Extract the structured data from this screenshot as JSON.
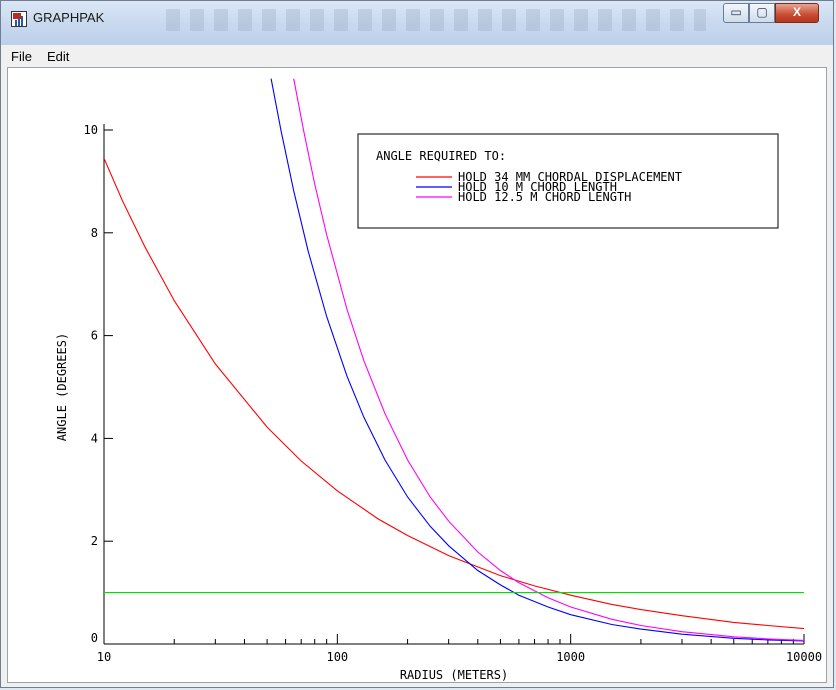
{
  "window": {
    "title": "GRAPHPAK",
    "controls": {
      "minimize": "▭",
      "maximize": "▢",
      "close": "X"
    }
  },
  "menu": [
    "File",
    "Edit"
  ],
  "chart_data": {
    "type": "line",
    "xlabel": "RADIUS (METERS)",
    "ylabel": "ANGLE (DEGREES)",
    "x_scale": "log",
    "xlim": [
      10,
      10000
    ],
    "ylim": [
      0,
      10
    ],
    "x_ticks": [
      "10",
      "100",
      "1000",
      "10000"
    ],
    "y_ticks": [
      "0",
      "2",
      "4",
      "6",
      "8",
      "10"
    ],
    "legend": {
      "title": "ANGLE REQUIRED TO:",
      "placement": "top-right"
    },
    "series": [
      {
        "name": "HOLD 34 MM CHORDAL DISPLACEMENT",
        "color": "#ff0000",
        "points": [
          [
            10,
            9.45
          ],
          [
            12,
            8.62
          ],
          [
            15,
            7.72
          ],
          [
            20,
            6.68
          ],
          [
            30,
            5.45
          ],
          [
            50,
            4.22
          ],
          [
            70,
            3.56
          ],
          [
            100,
            2.98
          ],
          [
            150,
            2.43
          ],
          [
            200,
            2.11
          ],
          [
            300,
            1.72
          ],
          [
            500,
            1.33
          ],
          [
            700,
            1.13
          ],
          [
            1000,
            0.95
          ],
          [
            1500,
            0.77
          ],
          [
            2000,
            0.67
          ],
          [
            3000,
            0.55
          ],
          [
            5000,
            0.42
          ],
          [
            7000,
            0.36
          ],
          [
            10000,
            0.3
          ]
        ]
      },
      {
        "name": "HOLD 10 M CHORD LENGTH",
        "color": "#0000ff",
        "points": [
          [
            52,
            11.0
          ],
          [
            57.3,
            10.0
          ],
          [
            65,
            8.82
          ],
          [
            75,
            7.64
          ],
          [
            90,
            6.37
          ],
          [
            110,
            5.21
          ],
          [
            130,
            4.41
          ],
          [
            160,
            3.58
          ],
          [
            200,
            2.86
          ],
          [
            250,
            2.29
          ],
          [
            300,
            1.91
          ],
          [
            400,
            1.43
          ],
          [
            500,
            1.15
          ],
          [
            600,
            0.95
          ],
          [
            800,
            0.72
          ],
          [
            1000,
            0.57
          ],
          [
            1500,
            0.38
          ],
          [
            2000,
            0.29
          ],
          [
            3000,
            0.19
          ],
          [
            5000,
            0.11
          ],
          [
            7000,
            0.08
          ],
          [
            10000,
            0.06
          ]
        ]
      },
      {
        "name": "HOLD 12.5 M CHORD LENGTH",
        "color": "#ff00ff",
        "points": [
          [
            65,
            11.0
          ],
          [
            71.6,
            10.0
          ],
          [
            80,
            8.95
          ],
          [
            90,
            7.96
          ],
          [
            110,
            6.51
          ],
          [
            130,
            5.51
          ],
          [
            160,
            4.48
          ],
          [
            200,
            3.58
          ],
          [
            250,
            2.86
          ],
          [
            300,
            2.39
          ],
          [
            400,
            1.79
          ],
          [
            500,
            1.43
          ],
          [
            600,
            1.19
          ],
          [
            800,
            0.9
          ],
          [
            1000,
            0.72
          ],
          [
            1500,
            0.48
          ],
          [
            2000,
            0.36
          ],
          [
            3000,
            0.24
          ],
          [
            5000,
            0.14
          ],
          [
            7000,
            0.1
          ],
          [
            10000,
            0.07
          ]
        ]
      },
      {
        "name": "",
        "color": "#00e000",
        "points": [
          [
            10,
            1.0
          ],
          [
            10000,
            1.0
          ]
        ]
      }
    ]
  }
}
